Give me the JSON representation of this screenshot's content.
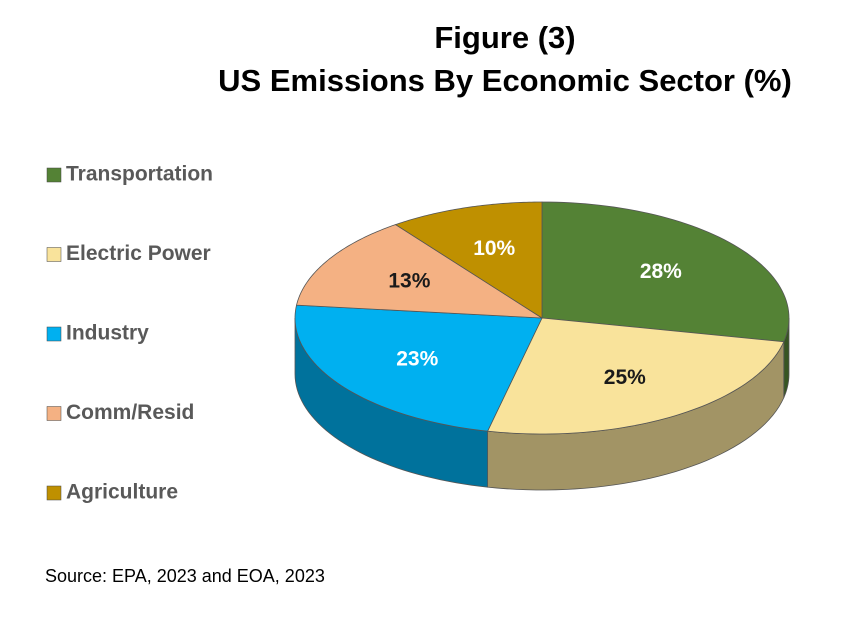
{
  "chart_data": {
    "type": "pie3d",
    "title": "Figure (3)",
    "subtitle": "US Emissions By Economic Sector (%)",
    "source": "Source: EPA, 2023 and EOA, 2023",
    "categories": [
      "Transportation",
      "Electric Power",
      "Industry",
      "Comm/Resid",
      "Agriculture"
    ],
    "values": [
      28,
      25,
      23,
      13,
      10
    ],
    "value_labels": [
      "28%",
      "25%",
      "23%",
      "13%",
      "10%"
    ],
    "colors": [
      "#548235",
      "#f9e39b",
      "#00b0f0",
      "#f4b183",
      "#bf9000"
    ],
    "legend": "left"
  }
}
